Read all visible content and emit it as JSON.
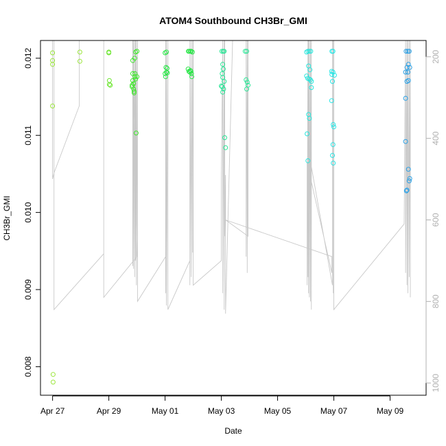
{
  "chart_data": {
    "type": "scatter",
    "title": "ATOM4 Southbound CH3Br_GMI",
    "xlabel": "Date",
    "ylabel": "CH3Br_GMI",
    "x_ticks": [
      "Apr 27",
      "Apr 29",
      "May 01",
      "May 03",
      "May 05",
      "May 07",
      "May 09"
    ],
    "y_ticks": [
      "0.008",
      "0.009",
      "0.010",
      "0.011",
      "0.012"
    ],
    "y2_ticks": [
      "200",
      "400",
      "600",
      "800",
      "1000"
    ],
    "xlim": [
      "2018-04-26.57",
      "2018-05-10.28"
    ],
    "ylim": [
      0.00763,
      0.01223
    ],
    "y2lim": [
      1030,
      160
    ],
    "grid": false,
    "legend": "none",
    "colors": {
      "axis": "#000000",
      "right_axis": "#b0b0b0",
      "pressure_line": "#c8c8c8"
    },
    "series": [
      {
        "color": "#9be63c",
        "points": [
          [
            "2018-04-27.0",
            0.01207
          ],
          [
            "2018-04-27.0",
            0.01197
          ],
          [
            "2018-04-27.0",
            0.01192
          ],
          [
            "2018-04-27.0",
            0.01138
          ],
          [
            "2018-04-27.02",
            0.0079
          ],
          [
            "2018-04-27.02",
            0.0078
          ],
          [
            "2018-04-27.97",
            0.01208
          ],
          [
            "2018-04-27.97",
            0.01196
          ]
        ]
      },
      {
        "color": "#6ee632",
        "points": [
          [
            "2018-04-29.0",
            0.01208
          ],
          [
            "2018-04-29.0",
            0.01207
          ],
          [
            "2018-04-29.02",
            0.01171
          ],
          [
            "2018-04-29.02",
            0.01166
          ],
          [
            "2018-04-29.05",
            0.01165
          ]
        ]
      },
      {
        "color": "#3ce628",
        "points": [
          [
            "2018-04-29.85",
            0.01197
          ],
          [
            "2018-04-29.85",
            0.0118
          ],
          [
            "2018-04-29.85",
            0.01171
          ],
          [
            "2018-04-29.83",
            0.01165
          ],
          [
            "2018-04-29.83",
            0.01163
          ],
          [
            "2018-04-29.88",
            0.0116
          ],
          [
            "2018-04-29.9",
            0.01157
          ],
          [
            "2018-04-29.92",
            0.012
          ],
          [
            "2018-04-29.93",
            0.0118
          ],
          [
            "2018-04-29.93",
            0.01176
          ],
          [
            "2018-04-29.95",
            0.01173
          ],
          [
            "2018-04-29.95",
            0.01208
          ],
          [
            "2018-04-30.0",
            0.01209
          ],
          [
            "2018-04-30.0",
            0.01176
          ],
          [
            "2018-04-29.88",
            0.01167
          ],
          [
            "2018-04-29.97",
            0.01103
          ],
          [
            "2018-04-29.9",
            0.01155
          ]
        ]
      },
      {
        "color": "#28e646",
        "points": [
          [
            "2018-05-01.0",
            0.01207
          ],
          [
            "2018-05-01.05",
            0.01208
          ],
          [
            "2018-05-01.0",
            0.0118
          ],
          [
            "2018-05-01.02",
            0.01176
          ],
          [
            "2018-05-01.05",
            0.01182
          ],
          [
            "2018-05-01.07",
            0.01187
          ],
          [
            "2018-05-01.03",
            0.01188
          ],
          [
            "2018-05-01.08",
            0.01181
          ],
          [
            "2018-05-01.83",
            0.01209
          ],
          [
            "2018-05-01.86",
            0.01209
          ],
          [
            "2018-05-01.9",
            0.01209
          ],
          [
            "2018-05-01.93",
            0.01209
          ],
          [
            "2018-05-01.97",
            0.01208
          ],
          [
            "2018-05-01.82",
            0.01186
          ],
          [
            "2018-05-01.85",
            0.01183
          ],
          [
            "2018-05-01.88",
            0.01182
          ],
          [
            "2018-05-01.92",
            0.01183
          ],
          [
            "2018-05-01.94",
            0.0118
          ],
          [
            "2018-05-01.95",
            0.01176
          ],
          [
            "2018-05-01.9",
            0.01184
          ]
        ]
      },
      {
        "color": "#28e696",
        "points": [
          [
            "2018-05-03.02",
            0.01209
          ],
          [
            "2018-05-03.07",
            0.01209
          ],
          [
            "2018-05-03.1",
            0.01209
          ],
          [
            "2018-05-03.05",
            0.01192
          ],
          [
            "2018-05-03.07",
            0.01186
          ],
          [
            "2018-05-03.03",
            0.0118
          ],
          [
            "2018-05-03.05",
            0.01175
          ],
          [
            "2018-05-03.1",
            0.0117
          ],
          [
            "2018-05-03.0",
            0.01164
          ],
          [
            "2018-05-03.03",
            0.01163
          ],
          [
            "2018-05-03.08",
            0.0116
          ],
          [
            "2018-05-03.05",
            0.01156
          ],
          [
            "2018-05-03.12",
            0.01097
          ],
          [
            "2018-05-03.15",
            0.01084
          ],
          [
            "2018-05-03.85",
            0.01209
          ],
          [
            "2018-05-03.9",
            0.01209
          ],
          [
            "2018-05-03.88",
            0.01172
          ],
          [
            "2018-05-03.92",
            0.01169
          ],
          [
            "2018-05-03.95",
            0.01165
          ],
          [
            "2018-05-03.9",
            0.0116
          ]
        ]
      },
      {
        "color": "#28e6dc",
        "points": [
          [
            "2018-05-06.03",
            0.01208
          ],
          [
            "2018-05-06.08",
            0.01209
          ],
          [
            "2018-05-06.13",
            0.01209
          ],
          [
            "2018-05-06.18",
            0.01209
          ],
          [
            "2018-05-06.1",
            0.0119
          ],
          [
            "2018-05-06.15",
            0.01185
          ],
          [
            "2018-05-06.03",
            0.01177
          ],
          [
            "2018-05-06.07",
            0.01174
          ],
          [
            "2018-05-06.12",
            0.01173
          ],
          [
            "2018-05-06.17",
            0.01172
          ],
          [
            "2018-05-06.2",
            0.01162
          ],
          [
            "2018-05-06.1",
            0.01127
          ],
          [
            "2018-05-06.13",
            0.01122
          ],
          [
            "2018-05-06.05",
            0.01102
          ],
          [
            "2018-05-06.08",
            0.01067
          ],
          [
            "2018-05-06.2",
            0.0117
          ]
        ]
      },
      {
        "color": "#28e6e6",
        "points": [
          [
            "2018-05-06.93",
            0.01209
          ],
          [
            "2018-05-06.97",
            0.01209
          ],
          [
            "2018-05-06.92",
            0.01183
          ],
          [
            "2018-05-06.97",
            0.01182
          ],
          [
            "2018-05-06.93",
            0.01179
          ],
          [
            "2018-05-07.02",
            0.01178
          ],
          [
            "2018-05-06.95",
            0.0117
          ],
          [
            "2018-05-06.92",
            0.01145
          ],
          [
            "2018-05-06.98",
            0.01114
          ],
          [
            "2018-05-07.0",
            0.01111
          ],
          [
            "2018-05-06.97",
            0.01088
          ],
          [
            "2018-05-06.95",
            0.01074
          ],
          [
            "2018-05-06.98",
            0.01064
          ]
        ]
      },
      {
        "color": "#28a0e6",
        "points": [
          [
            "2018-05-09.57",
            0.01209
          ],
          [
            "2018-05-09.63",
            0.01209
          ],
          [
            "2018-05-09.68",
            0.01209
          ],
          [
            "2018-05-09.65",
            0.01192
          ],
          [
            "2018-05-09.6",
            0.01188
          ],
          [
            "2018-05-09.7",
            0.01188
          ],
          [
            "2018-05-09.55",
            0.01182
          ],
          [
            "2018-05-09.63",
            0.01182
          ],
          [
            "2018-05-09.6",
            0.0117
          ],
          [
            "2018-05-09.65",
            0.01171
          ],
          [
            "2018-05-09.55",
            0.01148
          ],
          [
            "2018-05-09.55",
            0.01092
          ],
          [
            "2018-05-09.65",
            0.01056
          ],
          [
            "2018-05-09.7",
            0.01044
          ],
          [
            "2018-05-09.68",
            0.01041
          ],
          [
            "2018-05-09.6",
            0.01029
          ],
          [
            "2018-05-09.58",
            0.01028
          ]
        ]
      }
    ],
    "pressure_trace": [
      [
        "2018-04-27.0",
        160
      ],
      [
        "2018-04-27.0",
        500
      ],
      [
        "2018-04-27.05",
        485
      ],
      [
        "2018-04-27.95",
        320
      ],
      [
        "2018-04-27.95",
        160
      ],
      [
        "2018-04-27.05",
        160
      ],
      [
        "2018-04-27.05",
        820
      ],
      [
        "2018-04-28.82",
        683
      ],
      [
        "2018-04-28.82",
        160
      ],
      [
        "2018-04-28.82",
        790
      ],
      [
        "2018-04-30.0",
        690
      ],
      [
        "2018-04-29.85",
        160
      ],
      [
        "2018-04-29.85",
        713
      ],
      [
        "2018-04-29.88",
        160
      ],
      [
        "2018-04-29.88",
        720
      ],
      [
        "2018-04-29.92",
        160
      ],
      [
        "2018-04-29.92",
        740
      ],
      [
        "2018-04-29.95",
        160
      ],
      [
        "2018-04-29.95",
        700
      ],
      [
        "2018-04-29.98",
        160
      ],
      [
        "2018-04-29.98",
        760
      ],
      [
        "2018-04-30.02",
        160
      ],
      [
        "2018-04-30.02",
        800
      ],
      [
        "2018-05-01.02",
        690
      ],
      [
        "2018-05-01.02",
        160
      ],
      [
        "2018-05-01.02",
        780
      ],
      [
        "2018-05-01.05",
        160
      ],
      [
        "2018-05-01.05",
        810
      ],
      [
        "2018-05-01.1",
        160
      ],
      [
        "2018-05-01.1",
        820
      ],
      [
        "2018-05-01.88",
        700
      ],
      [
        "2018-05-01.88",
        160
      ],
      [
        "2018-05-01.88",
        760
      ],
      [
        "2018-05-01.93",
        160
      ],
      [
        "2018-05-01.93",
        740
      ],
      [
        "2018-05-01.98",
        160
      ],
      [
        "2018-05-01.98",
        680
      ],
      [
        "2018-05-02.0",
        160
      ],
      [
        "2018-05-02.0",
        760
      ],
      [
        "2018-05-03.0",
        700
      ],
      [
        "2018-05-03.0",
        500
      ],
      [
        "2018-05-03.05",
        160
      ],
      [
        "2018-05-03.05",
        780
      ],
      [
        "2018-05-03.1",
        160
      ],
      [
        "2018-05-03.1",
        820
      ],
      [
        "2018-05-03.12",
        160
      ],
      [
        "2018-05-03.12",
        640
      ],
      [
        "2018-05-03.15",
        490
      ],
      [
        "2018-05-03.15",
        830
      ],
      [
        "2018-05-03.4",
        160
      ],
      [
        "2018-05-03.88",
        160
      ],
      [
        "2018-05-03.88",
        690
      ],
      [
        "2018-05-03.92",
        160
      ],
      [
        "2018-05-03.92",
        730
      ],
      [
        "2018-05-03.95",
        160
      ],
      [
        "2018-05-03.95",
        640
      ],
      [
        "2018-05-03.15",
        600
      ],
      [
        "2018-05-06.93",
        690
      ],
      [
        "2018-05-06.93",
        730
      ],
      [
        "2018-05-06.05",
        460
      ],
      [
        "2018-05-06.05",
        760
      ],
      [
        "2018-05-06.08",
        160
      ],
      [
        "2018-05-06.08",
        740
      ],
      [
        "2018-05-06.1",
        160
      ],
      [
        "2018-05-06.1",
        780
      ],
      [
        "2018-05-06.13",
        160
      ],
      [
        "2018-05-06.13",
        790
      ],
      [
        "2018-05-06.17",
        160
      ],
      [
        "2018-05-06.17",
        800
      ],
      [
        "2018-05-06.2",
        160
      ],
      [
        "2018-05-06.2",
        820
      ],
      [
        "2018-05-06.2",
        470
      ],
      [
        "2018-05-06.95",
        760
      ],
      [
        "2018-05-06.95",
        160
      ],
      [
        "2018-05-06.98",
        160
      ],
      [
        "2018-05-06.98",
        780
      ],
      [
        "2018-05-07.0",
        160
      ],
      [
        "2018-05-07.0",
        820
      ],
      [
        "2018-05-09.5",
        610
      ],
      [
        "2018-05-09.55",
        160
      ],
      [
        "2018-05-09.55",
        730
      ],
      [
        "2018-05-09.6",
        160
      ],
      [
        "2018-05-09.6",
        760
      ],
      [
        "2018-05-09.63",
        160
      ],
      [
        "2018-05-09.63",
        780
      ],
      [
        "2018-05-09.68",
        160
      ],
      [
        "2018-05-09.68",
        740
      ],
      [
        "2018-05-09.72",
        160
      ],
      [
        "2018-05-09.72",
        790
      ]
    ]
  }
}
